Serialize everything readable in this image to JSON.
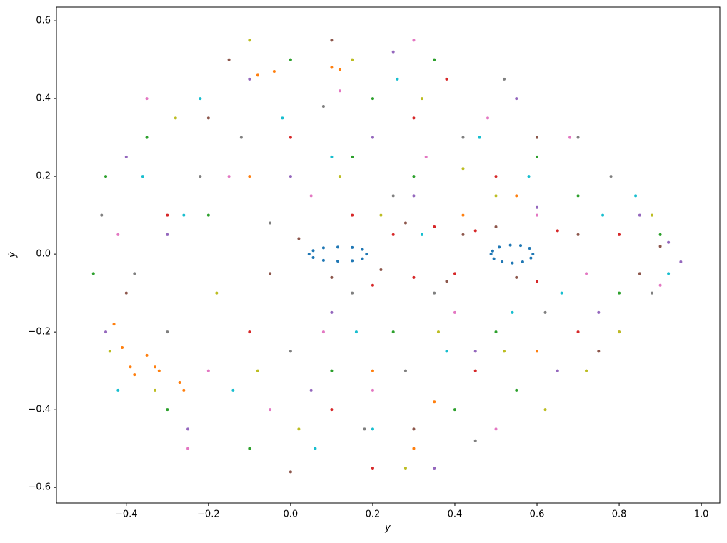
{
  "chart_data": {
    "type": "scatter",
    "xlabel": "y",
    "ylabel": "ẏ",
    "xlim": [
      -0.57,
      1.045
    ],
    "ylim": [
      -0.64,
      0.635
    ],
    "xticks": [
      {
        "value": -0.4,
        "label": "−0.4"
      },
      {
        "value": -0.2,
        "label": "−0.2"
      },
      {
        "value": 0,
        "label": "0.0"
      },
      {
        "value": 0.2,
        "label": "0.2"
      },
      {
        "value": 0.4,
        "label": "0.4"
      },
      {
        "value": 0.6,
        "label": "0.6"
      },
      {
        "value": 0.8,
        "label": "0.8"
      },
      {
        "value": 1,
        "label": "1.0"
      }
    ],
    "yticks": [
      {
        "value": -0.6,
        "label": "−0.6"
      },
      {
        "value": -0.4,
        "label": "−0.4"
      },
      {
        "value": -0.2,
        "label": "−0.2"
      },
      {
        "value": 0,
        "label": "0.0"
      },
      {
        "value": 0.2,
        "label": "0.2"
      },
      {
        "value": 0.4,
        "label": "0.4"
      },
      {
        "value": 0.6,
        "label": "0.6"
      }
    ],
    "grid": false,
    "series": [
      {
        "color": "#1f77b4",
        "x": [
          0.185,
          0.175,
          0.15,
          0.115,
          0.08,
          0.055,
          0.045,
          0.055,
          0.08,
          0.115,
          0.15,
          0.175,
          0.59,
          0.582,
          0.56,
          0.535,
          0.508,
          0.492,
          0.488,
          0.495,
          0.515,
          0.54,
          0.565,
          0.585
        ],
        "y": [
          0,
          0.012,
          0.017,
          0.018,
          0.016,
          0.009,
          0,
          -0.009,
          -0.016,
          -0.018,
          -0.017,
          -0.012,
          0,
          0.015,
          0.022,
          0.023,
          0.018,
          0.008,
          0,
          -0.012,
          -0.02,
          -0.023,
          -0.02,
          -0.01
        ]
      },
      {
        "color": "#ff7f0e",
        "x": [
          -0.43,
          -0.41,
          -0.39,
          -0.38,
          -0.35,
          -0.33,
          -0.32,
          -0.27,
          -0.26,
          -0.08,
          -0.04,
          0.1,
          0.12,
          0.2,
          0.35,
          0.42,
          0.6,
          -0.1,
          0.3,
          0.55
        ],
        "y": [
          -0.18,
          -0.24,
          -0.29,
          -0.31,
          -0.26,
          -0.29,
          -0.3,
          -0.33,
          -0.35,
          0.46,
          0.47,
          0.48,
          0.475,
          -0.3,
          -0.38,
          0.1,
          -0.25,
          0.2,
          -0.5,
          0.15
        ]
      },
      {
        "color": "#2ca02c",
        "x": [
          -0.45,
          -0.3,
          0.0,
          0.2,
          0.4,
          0.6,
          0.8,
          0.1,
          -0.2,
          0.3,
          0.5,
          -0.1,
          0.7,
          0.25,
          -0.35,
          0.15,
          0.55,
          0.9,
          -0.48,
          0.35
        ],
        "y": [
          0.2,
          -0.4,
          0.5,
          0.4,
          -0.4,
          0.25,
          -0.1,
          -0.3,
          0.1,
          0.2,
          -0.2,
          -0.5,
          0.15,
          -0.2,
          0.3,
          0.25,
          -0.35,
          0.05,
          -0.05,
          0.5
        ]
      },
      {
        "color": "#d62728",
        "x": [
          0.25,
          0.3,
          0.35,
          0.4,
          0.45,
          0.2,
          0.15,
          0.6,
          0.65,
          0.0,
          0.1,
          0.3,
          -0.1,
          0.5,
          0.7,
          -0.3,
          0.2,
          0.45,
          0.8,
          0.38
        ],
        "y": [
          0.05,
          -0.06,
          0.07,
          -0.05,
          0.06,
          -0.08,
          0.1,
          -0.07,
          0.06,
          0.3,
          -0.4,
          0.35,
          -0.2,
          0.2,
          -0.2,
          0.1,
          -0.55,
          -0.3,
          0.05,
          0.45
        ]
      },
      {
        "color": "#9467bd",
        "x": [
          -0.4,
          -0.25,
          0.05,
          0.3,
          0.55,
          0.75,
          0.92,
          0.2,
          -0.1,
          0.45,
          0.65,
          -0.3,
          0.1,
          0.85,
          0.35,
          -0.45,
          0.6,
          0.0,
          0.25,
          0.95
        ],
        "y": [
          0.25,
          -0.45,
          -0.35,
          0.15,
          0.4,
          -0.15,
          0.03,
          0.3,
          0.45,
          -0.25,
          -0.3,
          0.05,
          -0.15,
          0.1,
          -0.55,
          -0.2,
          0.12,
          0.2,
          0.52,
          -0.02
        ]
      },
      {
        "color": "#8c564b",
        "x": [
          0.28,
          0.38,
          0.5,
          0.55,
          0.1,
          0.02,
          -0.05,
          0.7,
          0.22,
          0.42,
          -0.2,
          0.6,
          0.3,
          -0.4,
          0.85,
          0.1,
          0.9,
          0.75,
          -0.15,
          0.0
        ],
        "y": [
          0.08,
          -0.07,
          0.07,
          -0.06,
          -0.06,
          0.04,
          -0.05,
          0.05,
          -0.04,
          0.05,
          0.35,
          0.3,
          -0.45,
          -0.1,
          -0.05,
          0.55,
          0.02,
          -0.25,
          0.5,
          -0.56
        ]
      },
      {
        "color": "#e377c2",
        "x": [
          -0.35,
          -0.2,
          0.08,
          0.33,
          0.5,
          0.68,
          0.8,
          0.12,
          -0.05,
          0.4,
          0.6,
          -0.25,
          0.2,
          -0.42,
          0.3,
          0.72,
          0.05,
          0.48,
          -0.15,
          0.9
        ],
        "y": [
          0.4,
          -0.3,
          -0.2,
          0.25,
          -0.45,
          0.3,
          -0.2,
          0.42,
          -0.4,
          -0.15,
          0.1,
          -0.5,
          -0.35,
          0.05,
          0.55,
          -0.05,
          0.15,
          0.35,
          0.2,
          -0.08
        ]
      },
      {
        "color": "#7f7f7f",
        "x": [
          -0.38,
          -0.22,
          0.0,
          0.18,
          0.42,
          0.62,
          0.78,
          0.28,
          -0.12,
          0.52,
          -0.3,
          0.08,
          0.35,
          0.7,
          -0.46,
          0.15,
          0.88,
          0.45,
          -0.05,
          0.25
        ],
        "y": [
          -0.05,
          0.2,
          -0.25,
          -0.45,
          0.3,
          -0.15,
          0.2,
          -0.3,
          0.3,
          0.45,
          -0.2,
          0.38,
          -0.1,
          0.3,
          0.1,
          -0.1,
          -0.1,
          -0.48,
          0.08,
          0.15
        ]
      },
      {
        "color": "#bcbd22",
        "x": [
          -0.44,
          -0.28,
          -0.08,
          0.12,
          0.32,
          0.52,
          0.72,
          0.88,
          0.22,
          -0.18,
          0.42,
          0.62,
          -0.33,
          0.02,
          0.5,
          0.28,
          -0.1,
          0.8,
          0.15,
          0.36
        ],
        "y": [
          -0.25,
          0.35,
          -0.3,
          0.2,
          0.4,
          -0.25,
          -0.3,
          0.1,
          0.1,
          -0.1,
          0.22,
          -0.4,
          -0.35,
          -0.45,
          0.15,
          -0.55,
          0.55,
          -0.2,
          0.5,
          -0.2
        ]
      },
      {
        "color": "#17becf",
        "x": [
          -0.42,
          -0.26,
          -0.02,
          0.16,
          0.38,
          0.58,
          0.76,
          0.92,
          0.26,
          -0.14,
          0.46,
          0.66,
          -0.36,
          0.06,
          0.54,
          0.32,
          -0.22,
          0.84,
          0.1,
          0.2
        ],
        "y": [
          -0.35,
          0.1,
          0.35,
          -0.2,
          -0.25,
          0.2,
          0.1,
          -0.05,
          0.45,
          -0.35,
          0.3,
          -0.1,
          0.2,
          -0.5,
          -0.15,
          0.05,
          0.4,
          0.15,
          0.25,
          -0.45
        ]
      }
    ]
  }
}
